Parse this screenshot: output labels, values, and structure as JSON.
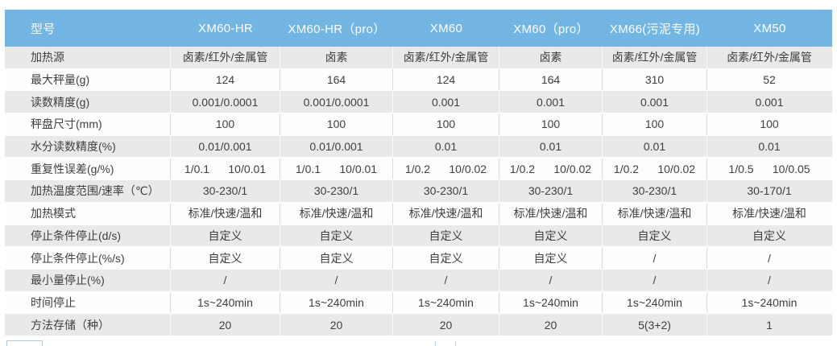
{
  "colors": {
    "header_bg": "#73b6e3",
    "header_text": "#fdfeff",
    "stripe_gray": "#e9e9e9",
    "stripe_white": "#fdfdfd",
    "body_text": "#3f3f3f",
    "separator_gray": "#dcdcdc"
  },
  "table": {
    "header": [
      "型号",
      "XM60-HR",
      "XM60-HR（pro）",
      "XM60",
      "XM60（pro）",
      "XM66(污泥专用)",
      "XM50"
    ],
    "rows": [
      {
        "label": "加热源",
        "values": [
          "卤素/红外/金属管",
          "卤素",
          "卤素/红外/金属管",
          "卤素",
          "卤素/红外/金属管",
          "卤素/红外/金属管"
        ]
      },
      {
        "label": "最大秤量(g)",
        "values": [
          "124",
          "164",
          "124",
          "164",
          "310",
          "52"
        ]
      },
      {
        "label": "读数精度(g)",
        "values": [
          "0.001/0.0001",
          "0.001/0.0001",
          "0.001",
          "0.001",
          "0.001",
          "0.001"
        ]
      },
      {
        "label": "秤盘尺寸(mm)",
        "values": [
          "100",
          "100",
          "100",
          "100",
          "100",
          "100"
        ]
      },
      {
        "label": "水分读数精度(%)",
        "values": [
          "0.01/0.001",
          "0.01/0.001",
          "0.01",
          "0.01",
          "0.01",
          "0.01"
        ]
      },
      {
        "label": "重复性误差(g/%)",
        "values": [
          "1/0.1      10/0.01",
          "1/0.1      10/0.01",
          "1/0.2      10/0.02",
          "1/0.2      10/0.02",
          "1/0.2      10/0.02",
          "1/0.5      10/0.05"
        ]
      },
      {
        "label": "加热温度范围/速率（℃）",
        "values": [
          "30-230/1",
          "30-230/1",
          "30-230/1",
          "30-230/1",
          "30-230/1",
          "30-170/1"
        ]
      },
      {
        "label": "加热模式",
        "values": [
          "标准/快速/温和",
          "标准/快速/温和",
          "标准/快速/温和",
          "标准/快速/温和",
          "标准/快速/温和",
          "标准/快速/温和"
        ]
      },
      {
        "label": "停止条件停止(d/s)",
        "values": [
          "自定义",
          "自定义",
          "自定义",
          "自定义",
          "自定义",
          "自定义"
        ]
      },
      {
        "label": "停止条件停止(%/s)",
        "values": [
          "自定义",
          "自定义",
          "自定义",
          "自定义",
          "/",
          "/"
        ]
      },
      {
        "label": "最小量停止(%)",
        "values": [
          "/",
          "/",
          "/",
          "/",
          "/",
          "/"
        ]
      },
      {
        "label": "时间停止",
        "values": [
          "1s~240min",
          "1s~240min",
          "1s~240min",
          "1s~240min",
          "1s~240min",
          "1s~240min"
        ]
      },
      {
        "label": "方法存储（种）",
        "values": [
          "20",
          "20",
          "20",
          "20",
          "5(3+2)",
          "1"
        ]
      }
    ]
  }
}
